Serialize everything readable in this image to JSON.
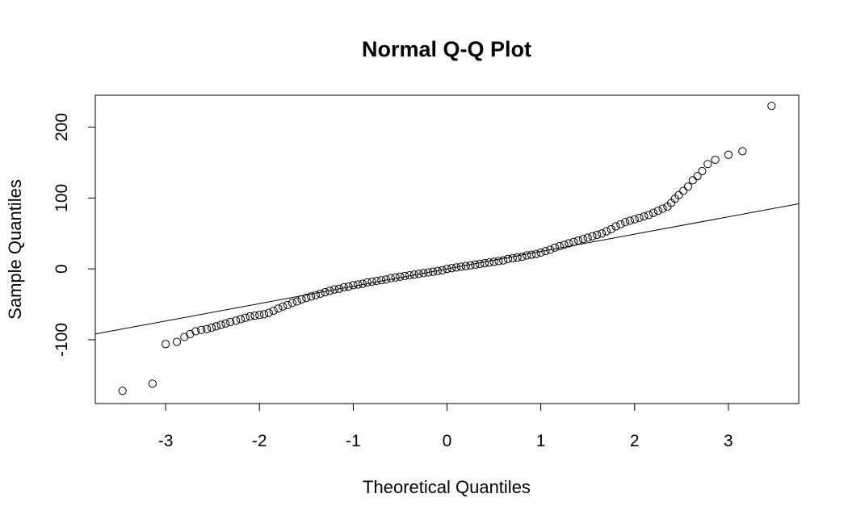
{
  "chart_data": {
    "type": "scatter",
    "title": "Normal Q-Q Plot",
    "xlabel": "Theoretical Quantiles",
    "ylabel": "Sample Quantiles",
    "xlim": [
      -3.75,
      3.75
    ],
    "ylim": [
      -190,
      245
    ],
    "x_ticks": [
      -3,
      -2,
      -1,
      0,
      1,
      2,
      3
    ],
    "x_tick_labels": [
      "-3",
      "-2",
      "-1",
      "0",
      "1",
      "2",
      "3"
    ],
    "y_ticks": [
      -100,
      0,
      100,
      200
    ],
    "y_tick_labels": [
      "-100",
      "0",
      "100",
      "200"
    ],
    "grid": false,
    "legend": "none",
    "reference_line": {
      "intercept": 0,
      "slope": 24.5
    },
    "series": [
      {
        "marker": "open-circle",
        "points": [
          [
            -3.46,
            -172
          ],
          [
            -3.14,
            -162
          ],
          [
            -3.0,
            -106
          ],
          [
            -2.88,
            -103
          ],
          [
            -2.8,
            -96
          ],
          [
            -2.74,
            -92
          ],
          [
            -2.68,
            -88
          ],
          [
            -2.62,
            -86
          ],
          [
            -2.56,
            -85
          ],
          [
            -2.51,
            -83
          ],
          [
            -2.46,
            -81
          ],
          [
            -2.41,
            -79
          ],
          [
            -2.36,
            -77
          ],
          [
            -2.31,
            -75
          ],
          [
            -2.25,
            -73
          ],
          [
            -2.2,
            -71
          ],
          [
            -2.15,
            -69
          ],
          [
            -2.1,
            -67
          ],
          [
            -2.05,
            -66
          ],
          [
            -2.0,
            -65
          ],
          [
            -1.95,
            -64
          ],
          [
            -1.9,
            -62
          ],
          [
            -1.85,
            -59
          ],
          [
            -1.8,
            -56
          ],
          [
            -1.75,
            -53
          ],
          [
            -1.7,
            -51
          ],
          [
            -1.65,
            -48
          ],
          [
            -1.6,
            -46
          ],
          [
            -1.55,
            -43
          ],
          [
            -1.5,
            -41
          ],
          [
            -1.45,
            -39
          ],
          [
            -1.4,
            -37
          ],
          [
            -1.35,
            -35
          ],
          [
            -1.3,
            -33
          ],
          [
            -1.25,
            -31
          ],
          [
            -1.2,
            -29
          ],
          [
            -1.15,
            -28
          ],
          [
            -1.1,
            -26
          ],
          [
            -1.05,
            -25
          ],
          [
            -1.0,
            -23
          ],
          [
            -0.95,
            -22
          ],
          [
            -0.9,
            -21
          ],
          [
            -0.85,
            -19
          ],
          [
            -0.8,
            -18
          ],
          [
            -0.75,
            -17
          ],
          [
            -0.7,
            -16
          ],
          [
            -0.65,
            -15
          ],
          [
            -0.6,
            -13
          ],
          [
            -0.55,
            -12
          ],
          [
            -0.5,
            -11
          ],
          [
            -0.45,
            -10
          ],
          [
            -0.4,
            -9
          ],
          [
            -0.35,
            -8
          ],
          [
            -0.3,
            -7
          ],
          [
            -0.25,
            -6
          ],
          [
            -0.2,
            -5
          ],
          [
            -0.15,
            -4
          ],
          [
            -0.1,
            -3
          ],
          [
            -0.05,
            -2
          ],
          [
            0.0,
            0
          ],
          [
            0.05,
            1
          ],
          [
            0.1,
            2
          ],
          [
            0.15,
            3
          ],
          [
            0.2,
            4
          ],
          [
            0.25,
            5
          ],
          [
            0.3,
            6
          ],
          [
            0.35,
            7
          ],
          [
            0.4,
            8
          ],
          [
            0.45,
            9
          ],
          [
            0.5,
            10
          ],
          [
            0.55,
            11
          ],
          [
            0.6,
            12
          ],
          [
            0.65,
            14
          ],
          [
            0.7,
            15
          ],
          [
            0.75,
            16
          ],
          [
            0.8,
            17
          ],
          [
            0.85,
            19
          ],
          [
            0.9,
            20
          ],
          [
            0.95,
            21
          ],
          [
            1.0,
            23
          ],
          [
            1.05,
            25
          ],
          [
            1.1,
            27
          ],
          [
            1.15,
            30
          ],
          [
            1.2,
            32
          ],
          [
            1.25,
            34
          ],
          [
            1.3,
            36
          ],
          [
            1.35,
            38
          ],
          [
            1.4,
            40
          ],
          [
            1.45,
            42
          ],
          [
            1.5,
            44
          ],
          [
            1.55,
            46
          ],
          [
            1.6,
            48
          ],
          [
            1.65,
            50
          ],
          [
            1.7,
            53
          ],
          [
            1.75,
            56
          ],
          [
            1.8,
            60
          ],
          [
            1.85,
            63
          ],
          [
            1.9,
            66
          ],
          [
            1.95,
            68
          ],
          [
            2.0,
            70
          ],
          [
            2.05,
            72
          ],
          [
            2.1,
            74
          ],
          [
            2.15,
            76
          ],
          [
            2.2,
            79
          ],
          [
            2.25,
            82
          ],
          [
            2.3,
            85
          ],
          [
            2.35,
            88
          ],
          [
            2.39,
            93
          ],
          [
            2.43,
            99
          ],
          [
            2.47,
            104
          ],
          [
            2.52,
            110
          ],
          [
            2.57,
            116
          ],
          [
            2.62,
            125
          ],
          [
            2.67,
            131
          ],
          [
            2.72,
            138
          ],
          [
            2.78,
            148
          ],
          [
            2.86,
            154
          ],
          [
            3.0,
            161
          ],
          [
            3.15,
            166
          ],
          [
            3.46,
            230
          ]
        ]
      }
    ]
  }
}
